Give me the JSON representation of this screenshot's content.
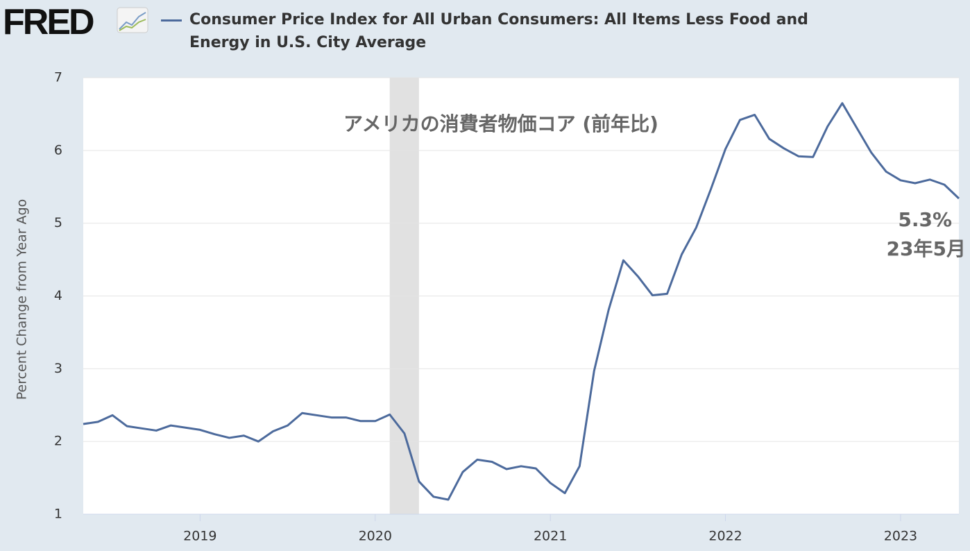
{
  "logo": "FRED",
  "chart_data": {
    "type": "line",
    "y_label": "Percent Change from Year Ago",
    "annotations": [
      "アメリカの消費者物価コア (前年比)",
      "5.3%",
      "23年5月"
    ],
    "x": [
      2018.333,
      2018.417,
      2018.5,
      2018.583,
      2018.667,
      2018.75,
      2018.833,
      2018.917,
      2019.0,
      2019.083,
      2019.167,
      2019.25,
      2019.333,
      2019.417,
      2019.5,
      2019.583,
      2019.667,
      2019.75,
      2019.833,
      2019.917,
      2020.0,
      2020.083,
      2020.167,
      2020.25,
      2020.333,
      2020.417,
      2020.5,
      2020.583,
      2020.667,
      2020.75,
      2020.833,
      2020.917,
      2021.0,
      2021.083,
      2021.167,
      2021.25,
      2021.333,
      2021.417,
      2021.5,
      2021.583,
      2021.667,
      2021.75,
      2021.833,
      2021.917,
      2022.0,
      2022.083,
      2022.167,
      2022.25,
      2022.333,
      2022.417,
      2022.5,
      2022.583,
      2022.667,
      2022.75,
      2022.833,
      2022.917,
      2023.0,
      2023.083,
      2023.167,
      2023.25,
      2023.333
    ],
    "series": [
      {
        "name": "Consumer Price Index for All Urban Consumers: All Items Less Food and Energy in U.S. City Average",
        "color": "#4c6a9c",
        "values": [
          2.24,
          2.27,
          2.36,
          2.21,
          2.18,
          2.15,
          2.22,
          2.19,
          2.16,
          2.1,
          2.05,
          2.08,
          2.0,
          2.14,
          2.22,
          2.39,
          2.36,
          2.33,
          2.33,
          2.28,
          2.28,
          2.37,
          2.11,
          1.45,
          1.24,
          1.2,
          1.58,
          1.75,
          1.72,
          1.62,
          1.66,
          1.63,
          1.43,
          1.29,
          1.66,
          2.97,
          3.81,
          4.49,
          4.27,
          4.01,
          4.03,
          4.57,
          4.94,
          5.47,
          6.02,
          6.42,
          6.49,
          6.16,
          6.03,
          5.92,
          5.91,
          6.33,
          6.65,
          6.31,
          5.97,
          5.71,
          5.59,
          5.55,
          5.6,
          5.53,
          5.34
        ]
      }
    ],
    "recession": [
      2020.083,
      2020.25
    ],
    "xlim": [
      2018.333,
      2023.333
    ],
    "xticks": [
      2019,
      2020,
      2021,
      2022,
      2023
    ],
    "ylim": [
      1,
      7
    ],
    "yticks": [
      1,
      2,
      3,
      4,
      5,
      6,
      7
    ],
    "grid": true
  }
}
